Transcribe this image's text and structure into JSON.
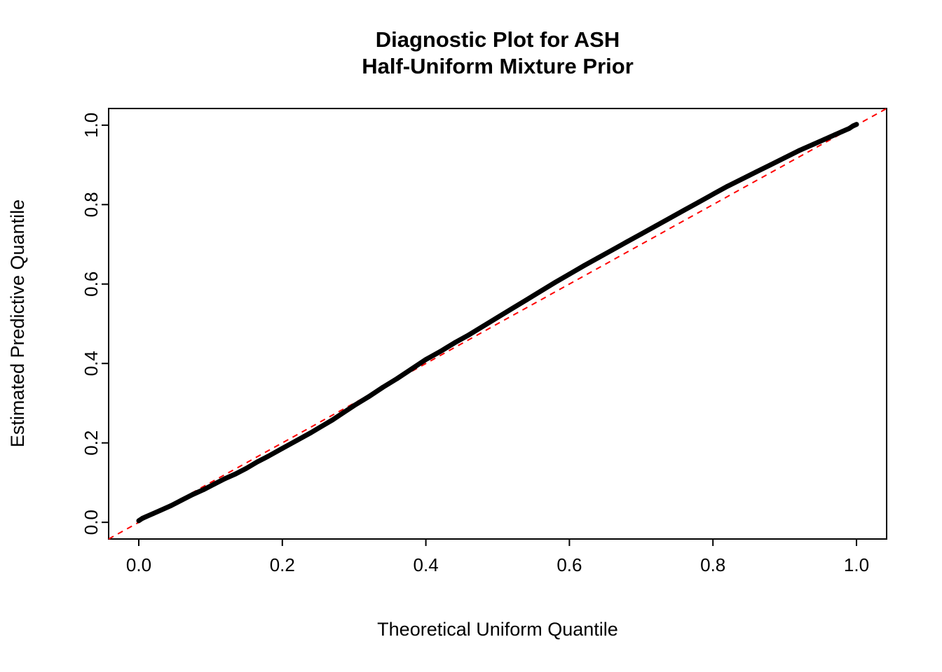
{
  "title": {
    "line1": "Diagnostic Plot for ASH",
    "line2": "Half-Uniform Mixture Prior"
  },
  "axes": {
    "x_label": "Theoretical Uniform Quantile",
    "y_label": "Estimated Predictive Quantile",
    "x_ticks": [
      "0.0",
      "0.2",
      "0.4",
      "0.6",
      "0.8",
      "1.0"
    ],
    "x_tick_values": [
      0,
      0.2,
      0.4,
      0.6,
      0.8,
      1.0
    ],
    "y_ticks": [
      "0.0",
      "0.2",
      "0.4",
      "0.6",
      "0.8",
      "1.0"
    ],
    "y_tick_values": [
      0,
      0.2,
      0.4,
      0.6,
      0.8,
      1.0
    ]
  },
  "chart_data": {
    "type": "scatter",
    "title": "Diagnostic Plot for ASH Half-Uniform Mixture Prior",
    "xlabel": "Theoretical Uniform Quantile",
    "ylabel": "Estimated Predictive Quantile",
    "xlim": [
      -0.042,
      1.042
    ],
    "ylim": [
      -0.042,
      1.042
    ],
    "grid": false,
    "legend": "none",
    "point_color": "#000000",
    "reference_line": {
      "style": "dashed",
      "color": "#ff0000",
      "slope": 1,
      "intercept": 0
    },
    "points": [
      [
        0.0,
        0.004
      ],
      [
        0.005,
        0.01
      ],
      [
        0.01,
        0.014
      ],
      [
        0.02,
        0.022
      ],
      [
        0.03,
        0.03
      ],
      [
        0.045,
        0.042
      ],
      [
        0.06,
        0.056
      ],
      [
        0.075,
        0.07
      ],
      [
        0.09,
        0.082
      ],
      [
        0.105,
        0.096
      ],
      [
        0.12,
        0.11
      ],
      [
        0.135,
        0.122
      ],
      [
        0.15,
        0.136
      ],
      [
        0.165,
        0.152
      ],
      [
        0.18,
        0.166
      ],
      [
        0.2,
        0.186
      ],
      [
        0.22,
        0.206
      ],
      [
        0.24,
        0.226
      ],
      [
        0.255,
        0.242
      ],
      [
        0.27,
        0.258
      ],
      [
        0.285,
        0.276
      ],
      [
        0.3,
        0.294
      ],
      [
        0.32,
        0.316
      ],
      [
        0.34,
        0.34
      ],
      [
        0.36,
        0.362
      ],
      [
        0.38,
        0.386
      ],
      [
        0.4,
        0.41
      ],
      [
        0.42,
        0.43
      ],
      [
        0.44,
        0.452
      ],
      [
        0.46,
        0.472
      ],
      [
        0.48,
        0.494
      ],
      [
        0.5,
        0.516
      ],
      [
        0.52,
        0.538
      ],
      [
        0.54,
        0.56
      ],
      [
        0.56,
        0.582
      ],
      [
        0.58,
        0.604
      ],
      [
        0.6,
        0.625
      ],
      [
        0.62,
        0.646
      ],
      [
        0.64,
        0.666
      ],
      [
        0.66,
        0.686
      ],
      [
        0.68,
        0.706
      ],
      [
        0.7,
        0.726
      ],
      [
        0.72,
        0.746
      ],
      [
        0.74,
        0.766
      ],
      [
        0.76,
        0.786
      ],
      [
        0.78,
        0.806
      ],
      [
        0.8,
        0.826
      ],
      [
        0.82,
        0.846
      ],
      [
        0.84,
        0.864
      ],
      [
        0.86,
        0.882
      ],
      [
        0.88,
        0.9
      ],
      [
        0.9,
        0.918
      ],
      [
        0.92,
        0.936
      ],
      [
        0.94,
        0.952
      ],
      [
        0.955,
        0.964
      ],
      [
        0.97,
        0.976
      ],
      [
        0.98,
        0.984
      ],
      [
        0.99,
        0.992
      ],
      [
        0.995,
        0.998
      ],
      [
        1.0,
        1.002
      ]
    ]
  }
}
